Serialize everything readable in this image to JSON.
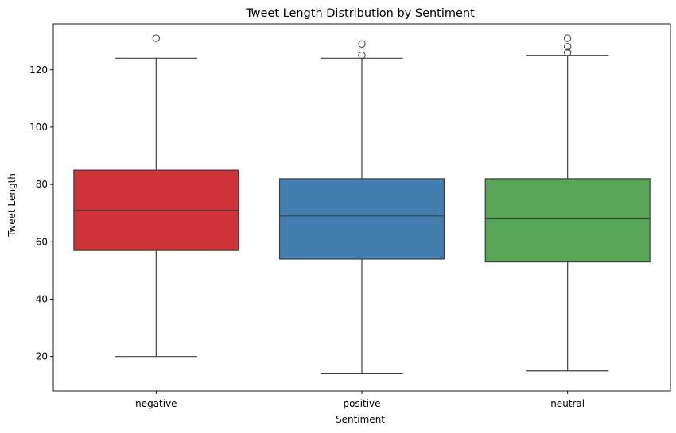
{
  "chart_data": {
    "type": "box",
    "title": "Tweet Length Distribution by Sentiment",
    "xlabel": "Sentiment",
    "ylabel": "Tweet Length",
    "ylim": [
      8,
      136
    ],
    "yticks": [
      20,
      40,
      60,
      80,
      100,
      120
    ],
    "grid": false,
    "legend": "none",
    "categories": [
      "negative",
      "positive",
      "neutral"
    ],
    "boxes": [
      {
        "category": "negative",
        "whisker_low": 20,
        "q1": 57,
        "median": 71,
        "q3": 85,
        "whisker_high": 124,
        "outliers": [
          131
        ],
        "color": "#d03337"
      },
      {
        "category": "positive",
        "whisker_low": 14,
        "q1": 54,
        "median": 69,
        "q3": 82,
        "whisker_high": 124,
        "outliers": [
          125,
          129
        ],
        "color": "#447eb0"
      },
      {
        "category": "neutral",
        "whisker_low": 15,
        "q1": 53,
        "median": 68,
        "q3": 82,
        "whisker_high": 125,
        "outliers": [
          126,
          128,
          131
        ],
        "color": "#59a557"
      }
    ]
  }
}
